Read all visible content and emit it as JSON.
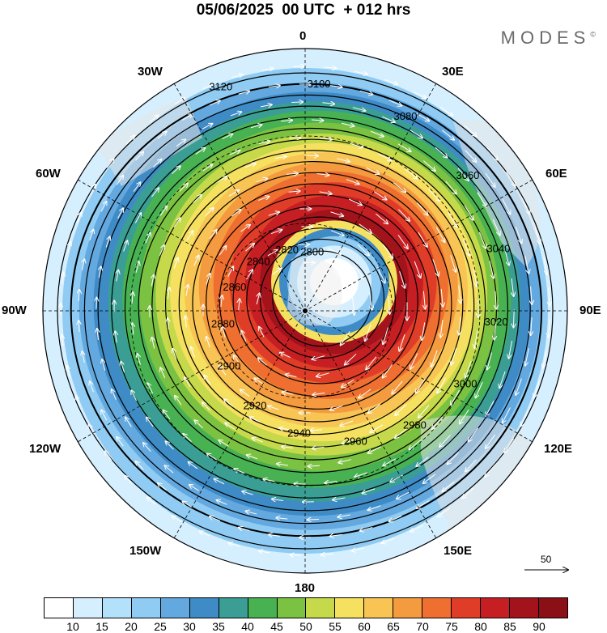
{
  "title": "05/06/2025  00 UTC  + 012 hrs",
  "brand": "MODES",
  "brand_mark": "©",
  "longitude_labels": {
    "n": "0",
    "e30": "30E",
    "e60": "60E",
    "e90": "90E",
    "e120": "120E",
    "e150": "150E",
    "s": "180",
    "w150": "150W",
    "w120": "120W",
    "w90": "90W",
    "w60": "60W",
    "w30": "30W"
  },
  "wind_reference": "50",
  "contour_labels": [
    "3120",
    "3100",
    "3080",
    "3060",
    "3040",
    "3020",
    "3000",
    "2980",
    "2960",
    "2940",
    "2920",
    "2900",
    "2880",
    "2860",
    "2840",
    "2820",
    "2800"
  ],
  "colorbar": {
    "colors": [
      "#ffffff",
      "#d6efff",
      "#b3e1fb",
      "#8fcbf2",
      "#63a8df",
      "#3f8bc6",
      "#3a9e94",
      "#48b253",
      "#7cc242",
      "#c5d94a",
      "#f6e060",
      "#f8c454",
      "#f59b3f",
      "#ee6f2f",
      "#df3d28",
      "#c51f23",
      "#a3131c",
      "#8a1016"
    ],
    "ticks": [
      "10",
      "15",
      "20",
      "25",
      "30",
      "35",
      "40",
      "45",
      "50",
      "55",
      "60",
      "65",
      "70",
      "75",
      "80",
      "85",
      "90"
    ]
  }
}
